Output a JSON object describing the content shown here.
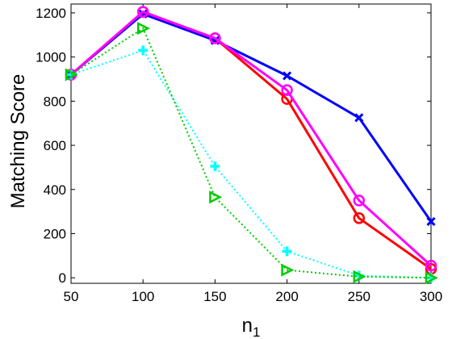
{
  "chart_data": {
    "type": "line",
    "title": "",
    "xlabel": "n",
    "xlabel_subscript": "1",
    "ylabel": "Matching Score",
    "x": [
      50,
      100,
      150,
      200,
      250,
      300
    ],
    "xlim": [
      50,
      300
    ],
    "ylim": [
      -25,
      1240
    ],
    "xticks": [
      "50",
      "100",
      "150",
      "200",
      "250",
      "300"
    ],
    "yticks": [
      "0",
      "200",
      "400",
      "600",
      "800",
      "1000",
      "1200"
    ],
    "xtick_values": [
      50,
      100,
      150,
      200,
      250,
      300
    ],
    "ytick_values": [
      0,
      200,
      400,
      600,
      800,
      1000,
      1200
    ],
    "grid": false,
    "legend": "none",
    "series": [
      {
        "values": [
          920,
          1195,
          1075,
          915,
          725,
          255
        ],
        "color": "#0000ff",
        "line_style": "solid",
        "marker": "x"
      },
      {
        "values": [
          920,
          1205,
          1085,
          810,
          270,
          40
        ],
        "color": "#ff0000",
        "line_style": "solid",
        "marker": "o"
      },
      {
        "values": [
          920,
          1205,
          1085,
          850,
          350,
          55
        ],
        "color": "#ff00ff",
        "line_style": "solid",
        "marker": "o"
      },
      {
        "values": [
          920,
          1030,
          505,
          120,
          10,
          0
        ],
        "color": "#00ffff",
        "line_style": "dotted",
        "marker": "+"
      },
      {
        "values": [
          920,
          1130,
          365,
          35,
          5,
          0
        ],
        "color": "#00cc00",
        "line_style": "dotted",
        "marker": "triangle-right"
      }
    ]
  }
}
